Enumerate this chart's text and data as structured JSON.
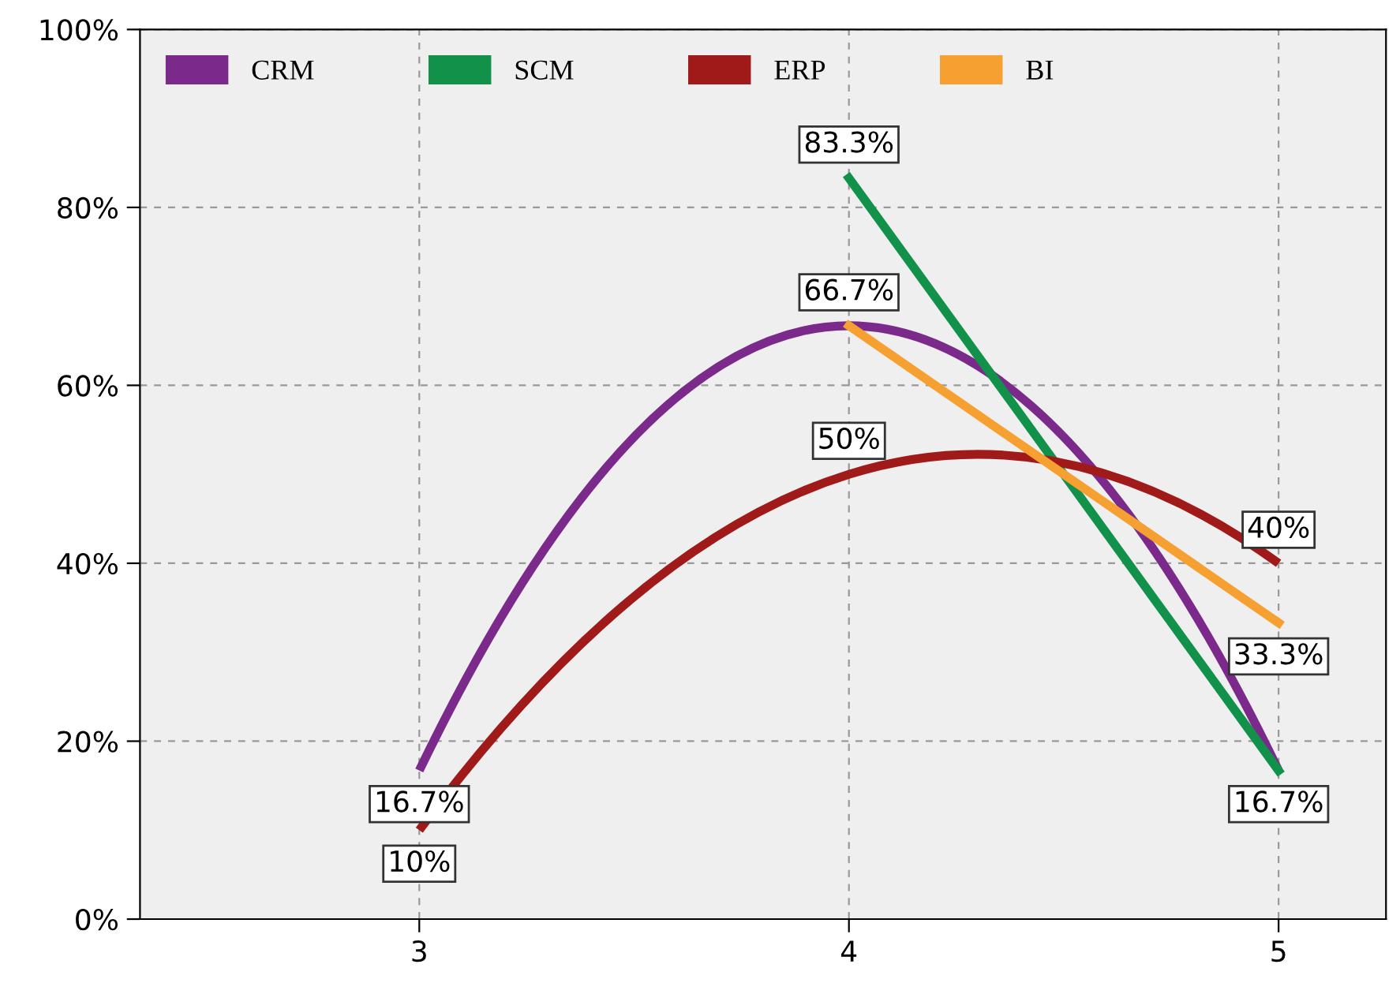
{
  "chart_data": {
    "type": "line",
    "xlim": [
      2.35,
      5.25
    ],
    "xticks": [
      3,
      4,
      5
    ],
    "ylim": [
      0,
      100
    ],
    "yticks": [
      {
        "value": 0,
        "label": "0%"
      },
      {
        "value": 20,
        "label": "20%"
      },
      {
        "value": 40,
        "label": "40%"
      },
      {
        "value": 60,
        "label": "60%"
      },
      {
        "value": 80,
        "label": "80%"
      },
      {
        "value": 100,
        "label": "100%"
      }
    ],
    "grid": true,
    "legend": "top left",
    "line_style": "solid",
    "series": [
      {
        "name": "CRM",
        "color": "#7b2a8c",
        "x": [
          3,
          4,
          5
        ],
        "values": [
          16.7,
          66.7,
          16.7
        ],
        "value_labels": [
          "16.7%",
          "66.7%",
          null
        ]
      },
      {
        "name": "SCM",
        "color": "#12914a",
        "x": [
          4,
          5
        ],
        "values": [
          83.3,
          16.7
        ],
        "value_labels": [
          "83.3%",
          "16.7%"
        ]
      },
      {
        "name": "ERP",
        "color": "#a01a1a",
        "x": [
          3,
          4,
          5
        ],
        "values": [
          10,
          50,
          40
        ],
        "value_labels": [
          "10%",
          "50%",
          "40%"
        ]
      },
      {
        "name": "BI",
        "color": "#f5a030",
        "x": [
          4,
          5
        ],
        "values": [
          66.7,
          33.3
        ],
        "value_labels": [
          null,
          "33.3%"
        ]
      }
    ]
  }
}
